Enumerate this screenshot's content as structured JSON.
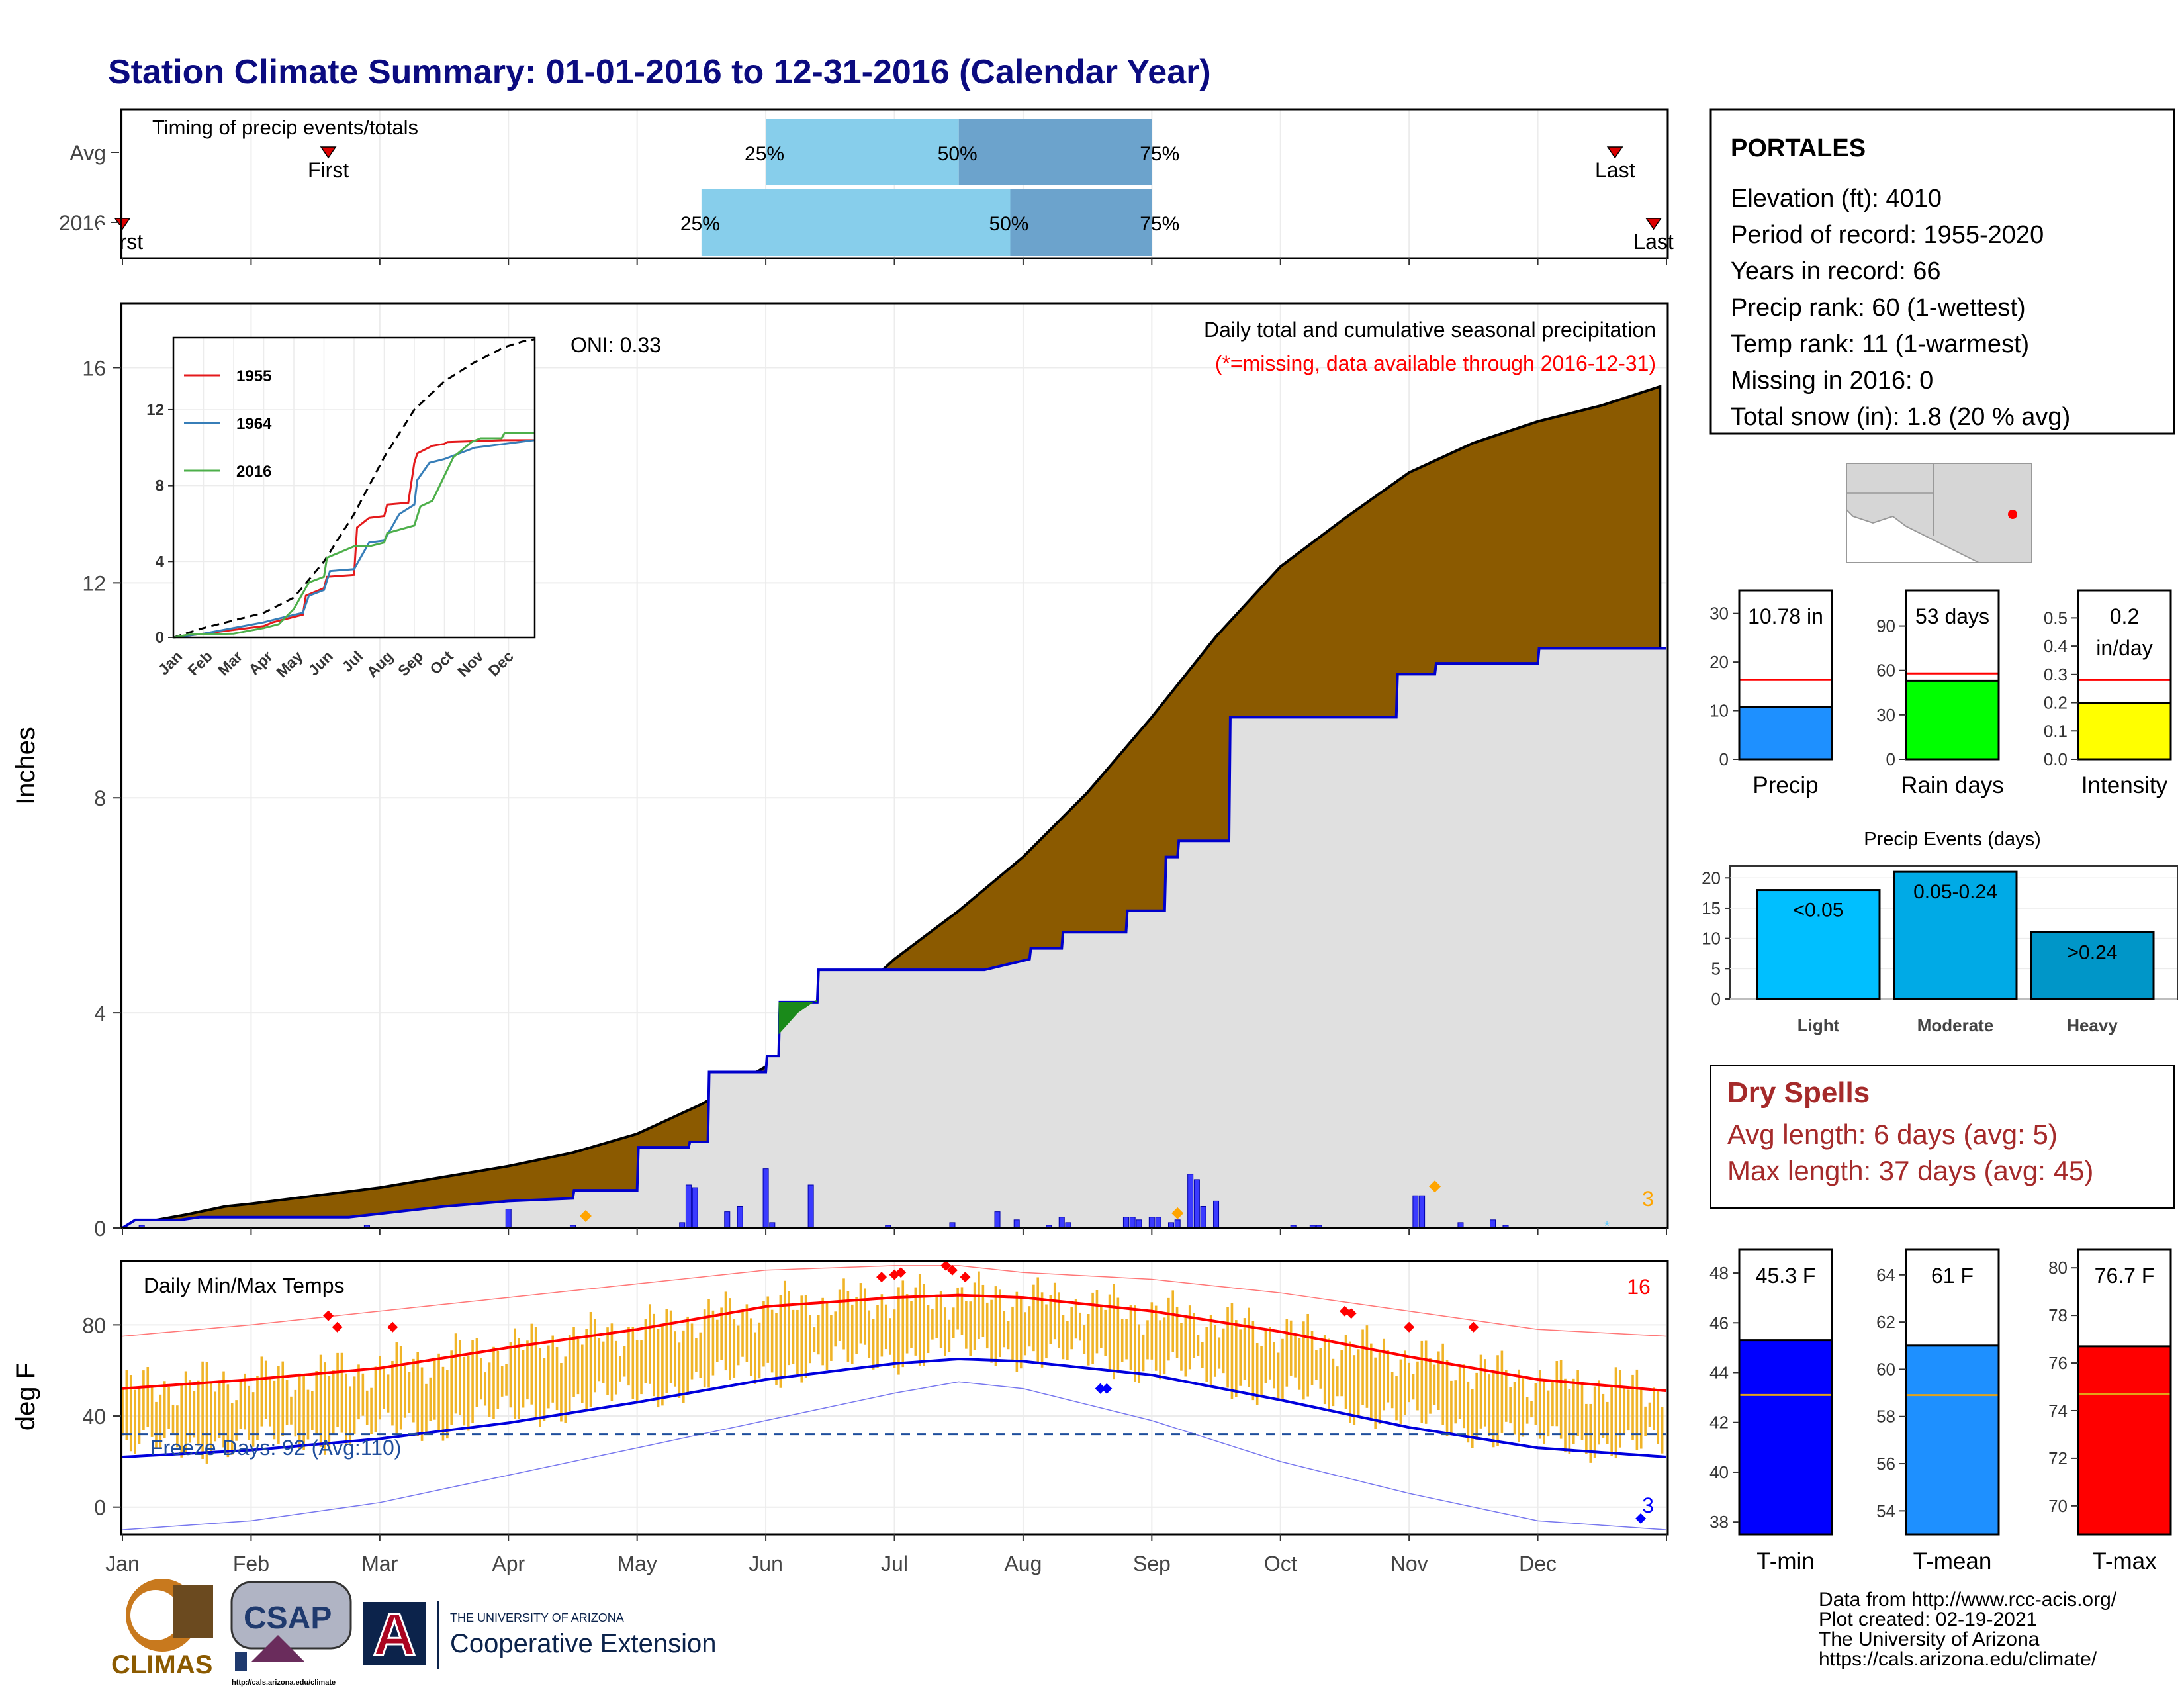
{
  "page": {
    "title": "Station Climate Summary: 01-01-2016 to 12-31-2016 (Calendar Year)",
    "credits": [
      "Data from http://www.rcc-acis.org/",
      "Plot created: 02-19-2021",
      "The University of Arizona",
      "https://cals.arizona.edu/climate/"
    ],
    "logos": {
      "climas": "CLIMAS",
      "csap": "CSAP",
      "csap_url": "http://cals.arizona.edu/climate",
      "ua_top": "THE UNIVERSITY OF ARIZONA",
      "ua_bottom": "Cooperative Extension",
      "ua_letter": "A"
    }
  },
  "station": {
    "name": "PORTALES",
    "lines": [
      "Elevation (ft): 4010",
      "Period of record: 1955-2020",
      "Years in record: 66",
      "Precip rank: 60 (1-wettest)",
      "Temp rank: 11 (1-warmest)",
      "Missing in 2016: 0",
      "Total snow (in): 1.8 (20 % avg)"
    ]
  },
  "dry_spells": {
    "title": "Dry Spells",
    "lines": [
      "Avg length: 6 days (avg: 5)",
      "Max length: 37 days (avg: 45)"
    ]
  },
  "colors": {
    "title": "#0b0b80",
    "cum_fill": "#8b5a00",
    "area_fill": "#e0e0e0",
    "precip_line": "#0000cc",
    "bar_fill": "#3b3bff",
    "temp_bar": "#f0b428",
    "tmax_line": "#ff0000",
    "tmin_line": "#0000dd",
    "dry_spells": "#a52a2a",
    "q_light": "#87ceeb",
    "q_dark": "#6ca3cc",
    "marker_red": "#dd0000",
    "orange": "#ffa500"
  },
  "chart_data": [
    {
      "id": "timing",
      "type": "bar",
      "title": "Timing of precip events/totals",
      "categories": [
        "Avg",
        "2016"
      ],
      "x_unit": "month",
      "rows": [
        {
          "label": "Avg",
          "first": 1.6,
          "q25": 5.0,
          "q50": 6.5,
          "q75": 8.0,
          "last": 11.6,
          "first_label": "First",
          "last_label": "Last"
        },
        {
          "label": "2016",
          "first": 0.0,
          "q25": 4.5,
          "q50": 6.9,
          "q75": 8.0,
          "last": 11.9,
          "first_label": "First",
          "last_label": "Last"
        }
      ],
      "quantile_labels": [
        "25%",
        "50%",
        "75%"
      ]
    },
    {
      "id": "precip",
      "type": "area",
      "title": "Daily total and cumulative seasonal precipitation",
      "subtitle": "(*=missing, data available through 2016-12-31)",
      "annotation": "ONI: 0.33",
      "ylabel": "Inches",
      "ylim": [
        0,
        17.2
      ],
      "yticks": [
        0,
        4,
        8,
        12,
        16
      ],
      "x_months": [
        "Jan",
        "Feb",
        "Mar",
        "Apr",
        "May",
        "Jun",
        "Jul",
        "Aug",
        "Sep",
        "Oct",
        "Nov",
        "Dec"
      ],
      "corner_count": "3",
      "cumulative_avg": {
        "x": [
          0,
          0.2,
          0.5,
          0.8,
          1.0,
          1.5,
          2.0,
          2.5,
          3.0,
          3.5,
          4.0,
          4.5,
          5.0,
          5.5,
          6.0,
          6.5,
          7.0,
          7.5,
          8.0,
          8.5,
          9.0,
          9.5,
          10.0,
          10.5,
          11.0,
          11.5,
          11.95
        ],
        "y": [
          0,
          0.12,
          0.25,
          0.4,
          0.45,
          0.6,
          0.75,
          0.95,
          1.15,
          1.4,
          1.75,
          2.3,
          3.0,
          3.9,
          5.0,
          5.9,
          6.9,
          8.1,
          9.5,
          11.0,
          12.3,
          13.2,
          14.05,
          14.6,
          15.0,
          15.3,
          15.65
        ]
      },
      "cumulative_2016": {
        "x": [
          0,
          0.1,
          0.45,
          0.6,
          1.75,
          1.76,
          2.5,
          3.0,
          3.5,
          3.51,
          4.0,
          4.01,
          4.4,
          4.41,
          4.55,
          4.56,
          5.0,
          5.01,
          5.1,
          5.11,
          5.4,
          5.41,
          5.8,
          6.2,
          6.7,
          7.05,
          7.06,
          7.3,
          7.31,
          7.8,
          7.81,
          8.1,
          8.11,
          8.2,
          8.21,
          8.6,
          8.61,
          9.2,
          9.3,
          9.31,
          9.55,
          9.6,
          9.61,
          9.9,
          9.91,
          10.2,
          10.21,
          10.85,
          11.0,
          11.01,
          11.95
        ],
        "y": [
          0,
          0.15,
          0.15,
          0.2,
          0.2,
          0.2,
          0.4,
          0.5,
          0.55,
          0.7,
          0.7,
          1.5,
          1.5,
          1.6,
          1.6,
          2.9,
          2.9,
          3.2,
          3.2,
          4.2,
          4.2,
          4.8,
          4.8,
          4.8,
          4.8,
          5.0,
          5.2,
          5.2,
          5.5,
          5.5,
          5.9,
          5.9,
          6.9,
          6.9,
          7.2,
          7.2,
          9.5,
          9.5,
          9.5,
          9.5,
          9.5,
          9.5,
          9.5,
          9.5,
          10.3,
          10.3,
          10.5,
          10.5,
          10.5,
          10.78,
          10.78
        ]
      },
      "daily_bars": {
        "x": [
          0.15,
          1.9,
          3.0,
          3.5,
          4.35,
          4.4,
          4.45,
          4.7,
          4.8,
          5.0,
          5.05,
          5.35,
          5.95,
          6.45,
          6.8,
          6.95,
          7.2,
          7.3,
          7.35,
          7.8,
          7.85,
          7.9,
          8.0,
          8.05,
          8.15,
          8.2,
          8.3,
          8.35,
          8.4,
          8.5,
          9.1,
          9.25,
          9.3,
          10.05,
          10.1,
          10.4,
          10.65,
          10.75
        ],
        "y": [
          0.05,
          0.05,
          0.35,
          0.05,
          0.1,
          0.8,
          0.75,
          0.3,
          0.4,
          1.1,
          0.1,
          0.8,
          0.05,
          0.1,
          0.3,
          0.15,
          0.05,
          0.2,
          0.1,
          0.2,
          0.2,
          0.15,
          0.2,
          0.2,
          0.1,
          0.15,
          1.0,
          0.9,
          0.4,
          0.5,
          0.05,
          0.05,
          0.05,
          0.6,
          0.6,
          0.1,
          0.15,
          0.05
        ]
      },
      "snow_markers_x": [
        3.6,
        8.2,
        10.2
      ],
      "inset": {
        "type": "line",
        "x_months": [
          "Jan",
          "Feb",
          "Mar",
          "Apr",
          "May",
          "Jun",
          "Jul",
          "Aug",
          "Sep",
          "Oct",
          "Nov",
          "Dec"
        ],
        "yticks": [
          0,
          4,
          8,
          12
        ],
        "ylim": [
          0,
          15.8
        ],
        "avg": {
          "x": [
            0,
            1,
            2,
            3,
            4,
            5,
            6,
            7,
            8,
            9,
            10,
            11,
            11.6,
            12
          ],
          "y": [
            0,
            0.5,
            0.9,
            1.3,
            2.1,
            4.0,
            6.5,
            9.5,
            12.0,
            13.5,
            14.5,
            15.3,
            15.6,
            15.7
          ]
        },
        "series": [
          {
            "name": "1955",
            "color": "#e41a1c",
            "x": [
              0,
              1,
              2.5,
              3,
              3.3,
              4.3,
              4.4,
              5.0,
              5.1,
              6.0,
              6.1,
              6.5,
              7.0,
              7.1,
              7.8,
              8.0,
              8.1,
              8.6,
              9.0,
              9.1,
              11.0,
              12
            ],
            "y": [
              0,
              0.2,
              0.5,
              0.6,
              0.8,
              1.2,
              2.2,
              2.6,
              3.2,
              3.3,
              5.8,
              6.3,
              6.4,
              7.0,
              7.1,
              9.2,
              9.7,
              10.1,
              10.2,
              10.3,
              10.4,
              10.4
            ]
          },
          {
            "name": "1964",
            "color": "#377eb8",
            "x": [
              0,
              1,
              3.0,
              3.5,
              4.3,
              4.5,
              5.0,
              5.2,
              6.0,
              6.5,
              7.0,
              7.5,
              8.0,
              8.1,
              8.5,
              9.0,
              10.0,
              12
            ],
            "y": [
              0,
              0.2,
              0.8,
              1.0,
              1.3,
              2.2,
              2.5,
              3.5,
              3.6,
              5.0,
              5.1,
              6.5,
              7.0,
              8.3,
              9.2,
              9.4,
              10.0,
              10.4
            ]
          },
          {
            "name": "2016",
            "color": "#4daf4a",
            "x": [
              0,
              0.5,
              2,
              3.0,
              3.5,
              4.0,
              4.5,
              5.0,
              5.1,
              6.0,
              6.5,
              7.0,
              7.1,
              8.0,
              8.2,
              8.6,
              9.3,
              9.9,
              10.2,
              10.9,
              11.0,
              12
            ],
            "y": [
              0,
              0.15,
              0.2,
              0.5,
              0.7,
              1.5,
              2.9,
              3.2,
              4.2,
              4.8,
              4.8,
              5.0,
              5.5,
              5.9,
              6.9,
              7.2,
              9.5,
              10.3,
              10.5,
              10.5,
              10.78,
              10.78
            ]
          }
        ]
      }
    },
    {
      "id": "temps",
      "type": "bar",
      "title": "Daily Min/Max Temps",
      "ylabel": "deg F",
      "ylim": [
        -12,
        108
      ],
      "yticks": [
        0,
        40,
        80
      ],
      "freeze_label": "Freeze Days: 92 (Avg:110)",
      "freeze_line": 32,
      "count_top": "16",
      "count_bottom": "3",
      "x_months": [
        "Jan",
        "Feb",
        "Mar",
        "Apr",
        "May",
        "Jun",
        "Jul",
        "Aug",
        "Sep",
        "Oct",
        "Nov",
        "Dec"
      ],
      "normal_max": {
        "x": [
          0,
          1,
          2,
          3,
          4,
          5,
          6,
          6.5,
          7,
          8,
          9,
          10,
          11,
          12
        ],
        "y": [
          52,
          56,
          61,
          70,
          78,
          88,
          92,
          93,
          92,
          86,
          77,
          66,
          56,
          51
        ]
      },
      "normal_min": {
        "x": [
          0,
          1,
          2,
          3,
          4,
          5,
          6,
          6.5,
          7,
          8,
          9,
          10,
          11,
          12
        ],
        "y": [
          22,
          25,
          30,
          37,
          46,
          56,
          63,
          65,
          64,
          58,
          47,
          35,
          26,
          22
        ]
      },
      "record_max": {
        "x": [
          0,
          1,
          2,
          3,
          4,
          5,
          6,
          6.5,
          7,
          8,
          9,
          10,
          11,
          12
        ],
        "y": [
          75,
          80,
          86,
          92,
          98,
          104,
          106,
          106,
          103,
          100,
          94,
          86,
          78,
          75
        ]
      },
      "record_min": {
        "x": [
          0,
          1,
          2,
          3,
          4,
          5,
          6,
          6.5,
          7,
          8,
          9,
          10,
          11,
          12
        ],
        "y": [
          -10,
          -6,
          2,
          14,
          26,
          38,
          50,
          55,
          52,
          38,
          20,
          6,
          -6,
          -10
        ]
      },
      "record_high_x": [
        1.6,
        1.67,
        2.1,
        5.9,
        6.0,
        6.05,
        6.4,
        6.45,
        6.55,
        9.5,
        9.55,
        10.0,
        10.5
      ],
      "record_high_y": [
        84,
        79,
        79,
        101,
        102,
        103,
        106,
        104,
        101,
        86,
        85,
        79,
        79
      ],
      "record_low_x": [
        7.6,
        7.65,
        11.8
      ],
      "record_low_y": [
        52,
        52,
        -5
      ]
    },
    {
      "id": "summary_precip",
      "type": "bar",
      "panels": [
        {
          "category": "Precip",
          "value": 10.78,
          "normal": 16.3,
          "ylim": [
            0,
            32
          ],
          "yticks": [
            0,
            10,
            20,
            30
          ],
          "label": "10.78 in",
          "color": "#1e90ff"
        },
        {
          "category": "Rain days",
          "value": 53,
          "normal": 58,
          "ylim": [
            0,
            105
          ],
          "yticks": [
            0,
            30,
            60,
            90
          ],
          "label": "53 days",
          "color": "#00ff00"
        },
        {
          "category": "Intensity",
          "value": 0.2,
          "normal": 0.28,
          "ylim": [
            0,
            0.55
          ],
          "yticks": [
            0.0,
            0.1,
            0.2,
            0.3,
            0.4,
            0.5
          ],
          "label": "0.2 in/day",
          "label_lines": [
            "0.2",
            "in/day"
          ],
          "color": "#ffff00"
        }
      ]
    },
    {
      "id": "precip_events",
      "type": "bar",
      "title": "Precip Events (days)",
      "categories": [
        "Light",
        "Moderate",
        "Heavy"
      ],
      "values": [
        18,
        21,
        11
      ],
      "bar_labels": [
        "<0.05",
        "0.05-0.24",
        ">0.24"
      ],
      "ylim": [
        0,
        22
      ],
      "yticks": [
        0,
        5,
        10,
        15,
        20
      ],
      "colors": [
        "#00bfff",
        "#00aae6",
        "#0096c8"
      ]
    },
    {
      "id": "summary_temps",
      "type": "bar",
      "panels": [
        {
          "category": "T-min",
          "value": 45.3,
          "normal": 43.1,
          "ylim": [
            37.5,
            48.4
          ],
          "yticks": [
            38,
            40,
            42,
            44,
            46,
            48
          ],
          "label": "45.3 F",
          "color": "#0000ff"
        },
        {
          "category": "T-mean",
          "value": 61,
          "normal": 58.9,
          "ylim": [
            53.0,
            64.5
          ],
          "yticks": [
            54,
            56,
            58,
            60,
            62,
            64
          ],
          "label": "61 F",
          "color": "#1e90ff"
        },
        {
          "category": "T-max",
          "value": 76.7,
          "normal": 74.7,
          "ylim": [
            68.8,
            80.2
          ],
          "yticks": [
            70,
            72,
            74,
            76,
            78,
            80
          ],
          "label": "76.7 F",
          "color": "#ff0000"
        }
      ]
    }
  ]
}
